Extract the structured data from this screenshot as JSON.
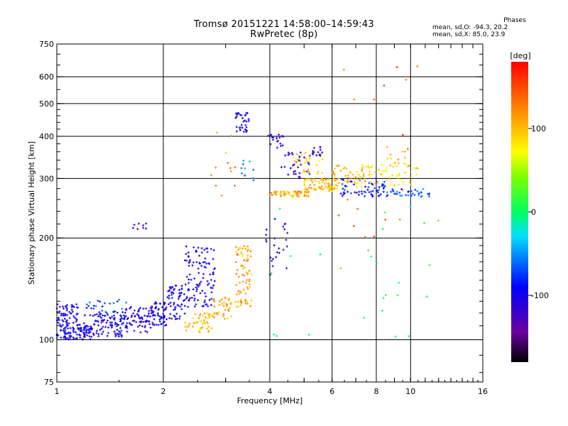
{
  "header": {
    "title_line1": "Tromsø 20151221 14:58:00–14:59:43",
    "title_line2": "RwPretec (8p)",
    "stats_heading": "Phases",
    "stats_line1": "mean, sd,O: -94.3, 20.2",
    "stats_line2": "mean, sd,X:  85.0, 23.9"
  },
  "colorbar": {
    "unit_label": "[deg]",
    "ticks": [
      {
        "value": 100,
        "label": "100"
      },
      {
        "value": 0,
        "label": "0"
      },
      {
        "value": -100,
        "label": "-100"
      }
    ],
    "range": [
      -180,
      180
    ]
  },
  "chart_data": {
    "type": "scatter",
    "title": "Tromsø 20151221 14:58:00–14:59:43",
    "subtitle": "RwPretec (8p)",
    "xlabel": "Frequency [MHz]",
    "ylabel": "Stationary phase Virtual Height [km]",
    "x_scale": "log",
    "y_scale": "log",
    "xlim": [
      1,
      16
    ],
    "ylim": [
      75,
      750
    ],
    "x_ticks": [
      {
        "value": 1,
        "label": "1"
      },
      {
        "value": 2,
        "label": "2"
      },
      {
        "value": 4,
        "label": "4"
      },
      {
        "value": 6,
        "label": "6"
      },
      {
        "value": 8,
        "label": "8"
      },
      {
        "value": 10,
        "label": "10"
      },
      {
        "value": 16,
        "label": "16"
      }
    ],
    "y_ticks": [
      {
        "value": 75,
        "label": "75"
      },
      {
        "value": 100,
        "label": "100"
      },
      {
        "value": 200,
        "label": "200"
      },
      {
        "value": 300,
        "label": "300"
      },
      {
        "value": 400,
        "label": "400"
      },
      {
        "value": 500,
        "label": "500"
      },
      {
        "value": 600,
        "label": "600"
      },
      {
        "value": 750,
        "label": "750"
      }
    ],
    "x_gridlines": [
      2,
      4,
      6,
      8,
      10
    ],
    "y_gridlines": [
      100,
      200,
      300,
      400,
      500,
      600
    ],
    "grid": true,
    "color_scale": {
      "variable": "phase",
      "unit": "deg",
      "min": -180,
      "max": 180,
      "colormap": "rainbow"
    },
    "clusters": [
      {
        "x_range": [
          1.0,
          1.25
        ],
        "y_range": [
          100,
          112
        ],
        "phase": -100,
        "count": 110
      },
      {
        "x_range": [
          1.0,
          1.15
        ],
        "y_range": [
          112,
          128
        ],
        "phase": -100,
        "count": 55
      },
      {
        "x_range": [
          1.25,
          1.55
        ],
        "y_range": [
          102,
          120
        ],
        "phase": -100,
        "count": 90
      },
      {
        "x_range": [
          1.2,
          1.6
        ],
        "y_range": [
          118,
          132
        ],
        "phase": -80,
        "count": 30
      },
      {
        "x_range": [
          1.55,
          1.85
        ],
        "y_range": [
          105,
          125
        ],
        "phase": -105,
        "count": 70
      },
      {
        "x_range": [
          1.6,
          1.8
        ],
        "y_range": [
          210,
          222
        ],
        "phase": -110,
        "count": 8
      },
      {
        "x_range": [
          1.85,
          2.05
        ],
        "y_range": [
          110,
          130
        ],
        "phase": -100,
        "count": 60
      },
      {
        "x_range": [
          2.05,
          2.3
        ],
        "y_range": [
          115,
          145
        ],
        "phase": -100,
        "count": 60
      },
      {
        "x_range": [
          2.3,
          2.8
        ],
        "y_range": [
          125,
          190
        ],
        "phase": -100,
        "count": 110
      },
      {
        "x_range": [
          2.3,
          2.75
        ],
        "y_range": [
          105,
          120
        ],
        "phase": 100,
        "count": 45
      },
      {
        "x_range": [
          2.75,
          3.15
        ],
        "y_range": [
          115,
          135
        ],
        "phase": 110,
        "count": 40
      },
      {
        "x_range": [
          3.2,
          3.55
        ],
        "y_range": [
          125,
          190
        ],
        "phase": 110,
        "count": 75
      },
      {
        "x_range": [
          3.2,
          3.5
        ],
        "y_range": [
          410,
          470
        ],
        "phase": -100,
        "count": 35
      },
      {
        "x_range": [
          3.3,
          3.6
        ],
        "y_range": [
          290,
          350
        ],
        "phase": -60,
        "count": 10
      },
      {
        "x_range": [
          2.7,
          3.2
        ],
        "y_range": [
          250,
          420
        ],
        "phase": 120,
        "count": 12
      },
      {
        "x_range": [
          3.9,
          4.4
        ],
        "y_range": [
          370,
          405
        ],
        "phase": -110,
        "count": 20
      },
      {
        "x_range": [
          3.85,
          4.5
        ],
        "y_range": [
          150,
          230
        ],
        "phase": -110,
        "count": 25
      },
      {
        "x_range": [
          4.0,
          5.2
        ],
        "y_range": [
          265,
          275
        ],
        "phase": 110,
        "count": 60
      },
      {
        "x_range": [
          4.3,
          5.2
        ],
        "y_range": [
          300,
          360
        ],
        "phase": -110,
        "count": 35
      },
      {
        "x_range": [
          4.6,
          5.8
        ],
        "y_range": [
          310,
          360
        ],
        "phase": 90,
        "count": 30
      },
      {
        "x_range": [
          5.0,
          6.2
        ],
        "y_range": [
          275,
          300
        ],
        "phase": 100,
        "count": 70
      },
      {
        "x_range": [
          5.2,
          5.8
        ],
        "y_range": [
          350,
          375
        ],
        "phase": -110,
        "count": 15
      },
      {
        "x_range": [
          6.0,
          7.5
        ],
        "y_range": [
          280,
          330
        ],
        "phase": 100,
        "count": 50
      },
      {
        "x_range": [
          6.2,
          8.5
        ],
        "y_range": [
          265,
          300
        ],
        "phase": -90,
        "count": 60
      },
      {
        "x_range": [
          7.0,
          10.5
        ],
        "y_range": [
          285,
          330
        ],
        "phase": 80,
        "count": 50
      },
      {
        "x_range": [
          8.0,
          11.5
        ],
        "y_range": [
          265,
          280
        ],
        "phase": -70,
        "count": 40
      },
      {
        "x_range": [
          8.5,
          10.0
        ],
        "y_range": [
          320,
          380
        ],
        "phase": 110,
        "count": 15
      },
      {
        "x_range": [
          6.0,
          12.0
        ],
        "y_range": [
          200,
          650
        ],
        "phase": 140,
        "count": 20
      },
      {
        "x_range": [
          4.0,
          11.5
        ],
        "y_range": [
          100,
          260
        ],
        "phase": 0,
        "count": 25
      }
    ]
  }
}
